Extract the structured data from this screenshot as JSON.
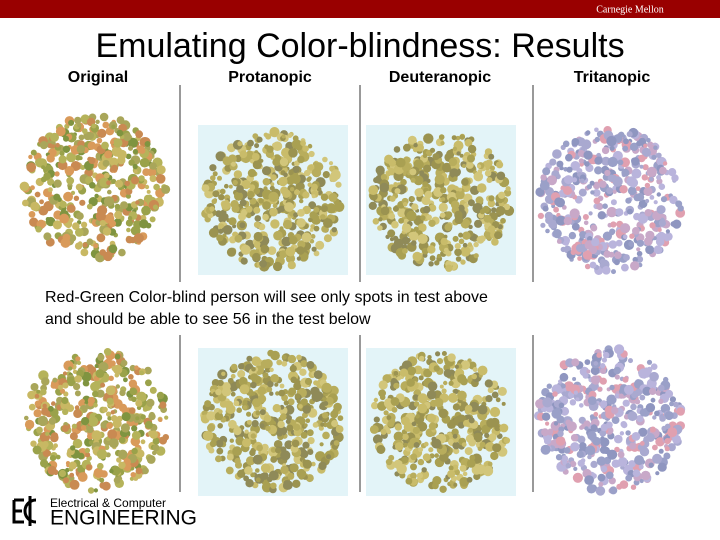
{
  "header": {
    "brand": "Carnegie Mellon"
  },
  "title": "Emulating Color-blindness:  Results",
  "columns": [
    "Original",
    "Protanopic",
    "Deuteranopic",
    "Tritanopic"
  ],
  "caption": [
    "Red-Green Color-blind person will see only spots in test above",
    "and should be able to see 56 in the test below"
  ],
  "footer": {
    "department": "Electrical & Computer",
    "school": "ENGINEERING"
  }
}
